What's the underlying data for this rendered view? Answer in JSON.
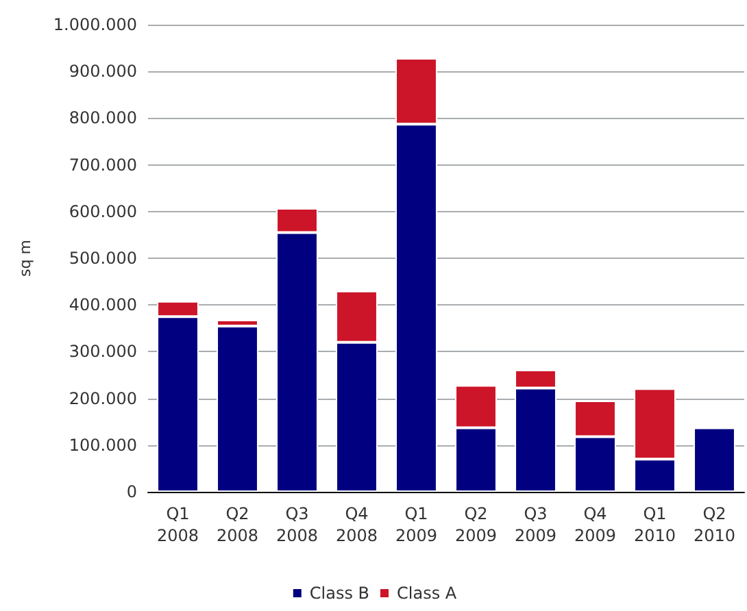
{
  "chart_data": {
    "type": "bar",
    "ylabel": "sq m",
    "stacked": true,
    "categories": [
      "Q1\n2008",
      "Q2\n2008",
      "Q3\n2008",
      "Q4\n2008",
      "Q1\n2009",
      "Q2\n2009",
      "Q3\n2009",
      "Q4\n2009",
      "Q1\n2010",
      "Q2\n2010"
    ],
    "series": [
      {
        "name": "Class B",
        "color": "#000080",
        "values": [
          375000,
          355000,
          555000,
          320000,
          787000,
          137000,
          222000,
          118000,
          70000,
          137000
        ]
      },
      {
        "name": "Class A",
        "color": "#cc1529",
        "values": [
          33000,
          13000,
          52000,
          110000,
          141000,
          91000,
          39000,
          77000,
          151000,
          null
        ]
      }
    ],
    "ylim": [
      0,
      1000000
    ],
    "yticks": [
      {
        "value": 0,
        "label": "0"
      },
      {
        "value": 100000,
        "label": "100.000"
      },
      {
        "value": 200000,
        "label": "200.000"
      },
      {
        "value": 300000,
        "label": "300.000"
      },
      {
        "value": 400000,
        "label": "400.000"
      },
      {
        "value": 500000,
        "label": "500.000"
      },
      {
        "value": 600000,
        "label": "600.000"
      },
      {
        "value": 700000,
        "label": "700.000"
      },
      {
        "value": 800000,
        "label": "800.000"
      },
      {
        "value": 900000,
        "label": "900.000"
      },
      {
        "value": 1000000,
        "label": "1.000.000"
      }
    ],
    "grid": true,
    "legend": "bottom"
  }
}
